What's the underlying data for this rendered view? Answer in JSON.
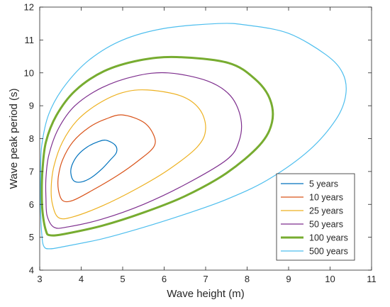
{
  "chart_data": {
    "type": "line",
    "title": "",
    "xlabel": "Wave height (m)",
    "ylabel": "Wave peak period   (s)",
    "xlim": [
      3,
      11
    ],
    "ylim": [
      4,
      12
    ],
    "xticks": [
      3,
      4,
      5,
      6,
      7,
      8,
      9,
      10,
      11
    ],
    "yticks": [
      4,
      5,
      6,
      7,
      8,
      9,
      10,
      11,
      12
    ],
    "grid": false,
    "box": true,
    "legend_position": "bottom-right",
    "series": [
      {
        "name": "5 years",
        "color": "#0072bd",
        "bold": false,
        "points": [
          [
            4.6,
            7.95
          ],
          [
            4.4,
            7.9
          ],
          [
            4.15,
            7.75
          ],
          [
            3.92,
            7.5
          ],
          [
            3.78,
            7.2
          ],
          [
            3.75,
            6.95
          ],
          [
            3.82,
            6.72
          ],
          [
            4.0,
            6.68
          ],
          [
            4.25,
            6.82
          ],
          [
            4.5,
            7.08
          ],
          [
            4.7,
            7.35
          ],
          [
            4.85,
            7.58
          ],
          [
            4.82,
            7.8
          ],
          [
            4.6,
            7.95
          ]
        ]
      },
      {
        "name": "10 years",
        "color": "#d95319",
        "bold": false,
        "points": [
          [
            5.0,
            8.72
          ],
          [
            4.6,
            8.6
          ],
          [
            4.2,
            8.35
          ],
          [
            3.8,
            7.9
          ],
          [
            3.55,
            7.35
          ],
          [
            3.45,
            6.85
          ],
          [
            3.45,
            6.45
          ],
          [
            3.55,
            6.12
          ],
          [
            3.8,
            6.12
          ],
          [
            4.3,
            6.45
          ],
          [
            4.9,
            6.9
          ],
          [
            5.4,
            7.35
          ],
          [
            5.75,
            7.75
          ],
          [
            5.75,
            8.1
          ],
          [
            5.5,
            8.5
          ],
          [
            5.0,
            8.72
          ]
        ]
      },
      {
        "name": "25 years",
        "color": "#edb120",
        "bold": false,
        "points": [
          [
            5.6,
            9.48
          ],
          [
            5.0,
            9.4
          ],
          [
            4.4,
            9.05
          ],
          [
            3.9,
            8.55
          ],
          [
            3.55,
            7.9
          ],
          [
            3.35,
            7.2
          ],
          [
            3.28,
            6.6
          ],
          [
            3.3,
            6.05
          ],
          [
            3.45,
            5.6
          ],
          [
            3.8,
            5.62
          ],
          [
            4.5,
            5.95
          ],
          [
            5.3,
            6.45
          ],
          [
            6.1,
            7.05
          ],
          [
            6.8,
            7.75
          ],
          [
            7.0,
            8.3
          ],
          [
            6.85,
            8.9
          ],
          [
            6.4,
            9.3
          ],
          [
            5.6,
            9.48
          ]
        ]
      },
      {
        "name": "50 years",
        "color": "#7e2f8e",
        "bold": false,
        "points": [
          [
            6.1,
            10.0
          ],
          [
            5.3,
            9.9
          ],
          [
            4.5,
            9.55
          ],
          [
            3.85,
            9.0
          ],
          [
            3.45,
            8.3
          ],
          [
            3.22,
            7.5
          ],
          [
            3.15,
            6.8
          ],
          [
            3.15,
            6.2
          ],
          [
            3.18,
            5.65
          ],
          [
            3.35,
            5.3
          ],
          [
            3.7,
            5.32
          ],
          [
            4.5,
            5.55
          ],
          [
            5.5,
            6.0
          ],
          [
            6.5,
            6.6
          ],
          [
            7.5,
            7.35
          ],
          [
            7.8,
            7.9
          ],
          [
            7.85,
            8.6
          ],
          [
            7.6,
            9.3
          ],
          [
            7.05,
            9.75
          ],
          [
            6.1,
            10.0
          ]
        ]
      },
      {
        "name": "100 years",
        "color": "#77ac30",
        "bold": true,
        "points": [
          [
            6.3,
            10.48
          ],
          [
            5.4,
            10.38
          ],
          [
            4.55,
            10.05
          ],
          [
            3.85,
            9.45
          ],
          [
            3.4,
            8.7
          ],
          [
            3.15,
            7.9
          ],
          [
            3.07,
            7.1
          ],
          [
            3.05,
            6.4
          ],
          [
            3.07,
            5.75
          ],
          [
            3.15,
            5.2
          ],
          [
            3.25,
            5.06
          ],
          [
            3.6,
            5.1
          ],
          [
            4.5,
            5.35
          ],
          [
            5.5,
            5.75
          ],
          [
            6.5,
            6.25
          ],
          [
            7.5,
            6.95
          ],
          [
            8.3,
            7.8
          ],
          [
            8.6,
            8.5
          ],
          [
            8.55,
            9.2
          ],
          [
            8.2,
            9.8
          ],
          [
            7.55,
            10.3
          ],
          [
            6.3,
            10.48
          ]
        ]
      },
      {
        "name": "500 years",
        "color": "#4dbeee",
        "bold": false,
        "points": [
          [
            7.3,
            11.5
          ],
          [
            6.0,
            11.35
          ],
          [
            5.0,
            11.0
          ],
          [
            4.2,
            10.4
          ],
          [
            3.6,
            9.6
          ],
          [
            3.22,
            8.75
          ],
          [
            3.05,
            7.8
          ],
          [
            3.02,
            6.9
          ],
          [
            3.02,
            5.9
          ],
          [
            3.05,
            5.1
          ],
          [
            3.1,
            4.72
          ],
          [
            3.25,
            4.65
          ],
          [
            3.6,
            4.72
          ],
          [
            4.5,
            4.95
          ],
          [
            5.5,
            5.3
          ],
          [
            6.5,
            5.7
          ],
          [
            7.5,
            6.15
          ],
          [
            8.5,
            6.75
          ],
          [
            9.5,
            7.65
          ],
          [
            10.15,
            8.6
          ],
          [
            10.38,
            9.35
          ],
          [
            10.3,
            10.0
          ],
          [
            9.9,
            10.55
          ],
          [
            9.0,
            11.2
          ],
          [
            8.0,
            11.45
          ],
          [
            7.3,
            11.5
          ]
        ]
      }
    ]
  }
}
